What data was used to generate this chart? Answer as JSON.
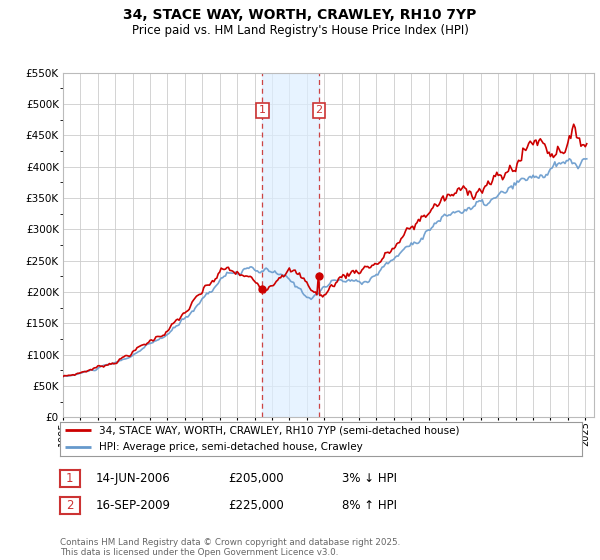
{
  "title": "34, STACE WAY, WORTH, CRAWLEY, RH10 7YP",
  "subtitle": "Price paid vs. HM Land Registry's House Price Index (HPI)",
  "legend_line1": "34, STACE WAY, WORTH, CRAWLEY, RH10 7YP (semi-detached house)",
  "legend_line2": "HPI: Average price, semi-detached house, Crawley",
  "footnote": "Contains HM Land Registry data © Crown copyright and database right 2025.\nThis data is licensed under the Open Government Licence v3.0.",
  "marker1_date": "14-JUN-2006",
  "marker1_price": "£205,000",
  "marker1_hpi": "3% ↓ HPI",
  "marker2_date": "16-SEP-2009",
  "marker2_price": "£225,000",
  "marker2_hpi": "8% ↑ HPI",
  "line_color_red": "#cc0000",
  "line_color_blue": "#6699cc",
  "shade_color": "#ddeeff",
  "marker_box_color": "#cc3333",
  "background_color": "#ffffff",
  "grid_color": "#cccccc",
  "sale1_x": 2006.45,
  "sale1_y": 205000,
  "sale2_x": 2009.7,
  "sale2_y": 225000,
  "ylim": [
    0,
    550000
  ],
  "yticks": [
    0,
    50000,
    100000,
    150000,
    200000,
    250000,
    300000,
    350000,
    400000,
    450000,
    500000,
    550000
  ],
  "xtick_years": [
    1995,
    1996,
    1997,
    1998,
    1999,
    2000,
    2001,
    2002,
    2003,
    2004,
    2005,
    2006,
    2007,
    2008,
    2009,
    2010,
    2011,
    2012,
    2013,
    2014,
    2015,
    2016,
    2017,
    2018,
    2019,
    2020,
    2021,
    2022,
    2023,
    2024,
    2025
  ]
}
